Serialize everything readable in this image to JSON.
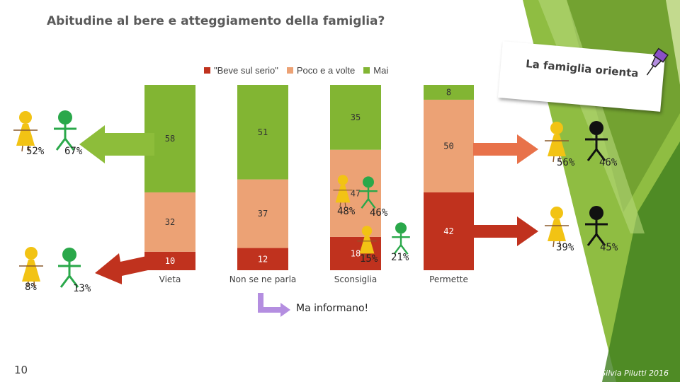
{
  "page": {
    "title": "Abitudine al bere e atteggiamento della famiglia?",
    "note": "La famiglia orienta",
    "subnote": "Ma informano!",
    "page_number": "10",
    "credit": "Silvia Pilutti 2016"
  },
  "chart_data": {
    "type": "bar",
    "stacked": true,
    "categories": [
      "Vieta",
      "Non se ne parla",
      "Sconsiglia",
      "Permette"
    ],
    "series": [
      {
        "name": "\"Beve sul serio\"",
        "color": "#c0321e",
        "values": [
          10,
          12,
          18,
          42
        ]
      },
      {
        "name": "Poco e a volte",
        "color": "#eca275",
        "values": [
          32,
          37,
          47,
          50
        ]
      },
      {
        "name": "Mai",
        "color": "#82b533",
        "values": [
          58,
          51,
          35,
          8
        ]
      }
    ],
    "ylim": [
      0,
      100
    ]
  },
  "figures": {
    "left_top": {
      "girl": "52%",
      "boy": "67%"
    },
    "left_bottom": {
      "girl": "8%",
      "boy": "13%"
    },
    "center_top": {
      "girl": "48%",
      "boy": "46%"
    },
    "center_bottom": {
      "girl": "15%",
      "boy": "21%"
    },
    "right_top": {
      "girl": "56%",
      "boy": "46%"
    },
    "right_bottom": {
      "girl": "39%",
      "boy": "45%"
    }
  },
  "colors": {
    "girl": "#f2c314",
    "boy_green": "#2aa84a",
    "boy_black": "#111111",
    "arrow_green": "#8dbd3a",
    "arrow_red": "#c0321e",
    "arrow_orange": "#e8724a",
    "purple": "#b48ee0"
  }
}
